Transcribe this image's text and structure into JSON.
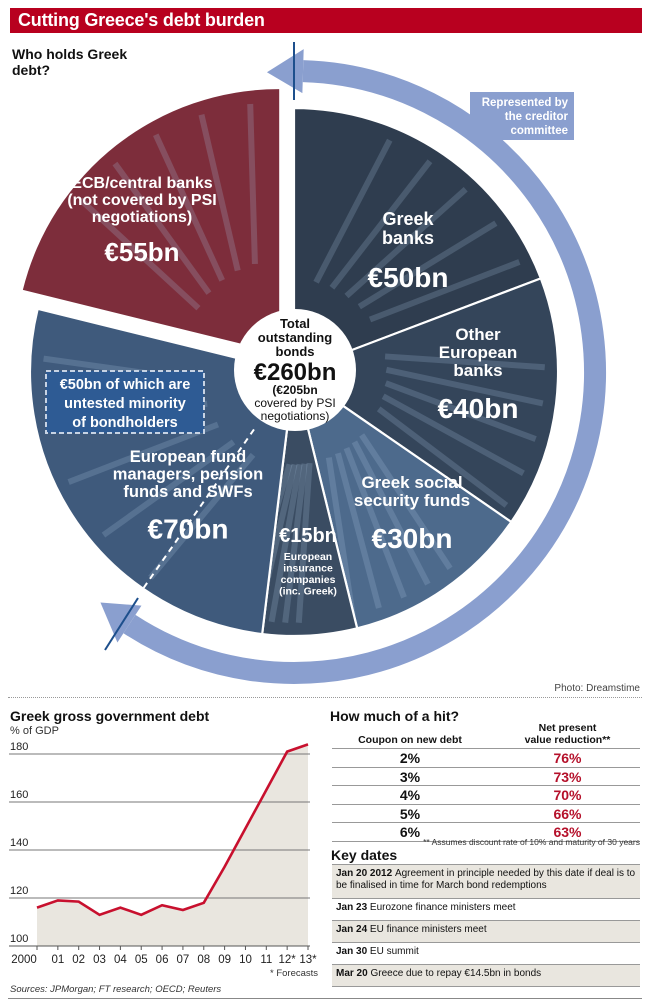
{
  "title": "Cutting Greece's debt burden",
  "pie_section": {
    "heading": "Who holds Greek debt?",
    "creditor_note": "Represented by the creditor committee",
    "center": {
      "label_line1": "Total",
      "label_line2": "outstanding",
      "label_line3": "bonds",
      "total": "€260bn",
      "covered_line1": "(€205bn",
      "covered_line2": "covered by PSI",
      "covered_line3": "negotiations)"
    },
    "minority_note": {
      "line1": "€50bn of which are",
      "line2": "untested minority",
      "line3": "of bondholders"
    },
    "photo_credit": "Photo: Dreamstime"
  },
  "chart_data": [
    {
      "type": "pie",
      "title": "Who holds Greek debt?",
      "total_label": "€260bn",
      "unit": "€bn",
      "slices": [
        {
          "name": "Greek banks",
          "label_lines": [
            "Greek",
            "banks"
          ],
          "value": 50,
          "value_label": "€50bn",
          "color": "#2f3d4f",
          "exploded": false
        },
        {
          "name": "Other European banks",
          "label_lines": [
            "Other",
            "European",
            "banks"
          ],
          "value": 40,
          "value_label": "€40bn",
          "color": "#34455a",
          "exploded": false
        },
        {
          "name": "Greek social security funds",
          "label_lines": [
            "Greek social",
            "security funds"
          ],
          "value": 30,
          "value_label": "€30bn",
          "color": "#4d6a8c",
          "exploded": false
        },
        {
          "name": "European insurance companies (inc. Greek)",
          "label_lines": [
            "European",
            "insurance",
            "companies",
            "(inc. Greek)"
          ],
          "value": 15,
          "value_label": "€15bn",
          "color": "#3a4c62",
          "exploded": false
        },
        {
          "name": "European fund managers, pension funds and SWFs",
          "label_lines": [
            "European fund",
            "managers, pension",
            "funds and SWFs"
          ],
          "value": 70,
          "value_label": "€70bn",
          "color": "#3f5a7c",
          "exploded": false
        },
        {
          "name": "ECB/central banks (not covered by PSI negotiations)",
          "label_lines": [
            "ECB/central banks",
            "(not covered by PSI",
            "negotiations)"
          ],
          "value": 55,
          "value_label": "€55bn",
          "color": "#7d2d3b",
          "exploded": true
        }
      ]
    },
    {
      "type": "area",
      "title": "Greek gross government debt",
      "ylabel": "% of GDP",
      "xlabel": "",
      "x": [
        "2000",
        "01",
        "02",
        "03",
        "04",
        "05",
        "06",
        "07",
        "08",
        "09",
        "10",
        "11",
        "12*",
        "13*"
      ],
      "values": [
        116,
        119,
        118.5,
        113,
        116,
        113,
        117,
        115,
        118,
        133,
        149,
        165,
        181,
        184
      ],
      "ylim": [
        100,
        185
      ],
      "yticks": [
        100,
        120,
        140,
        160,
        180
      ],
      "grid": true,
      "line_color": "#c8102e",
      "fill_color": "#e9e6df",
      "note": "* Forecasts",
      "sources": "Sources: JPMorgan;  FT research; OECD; Reuters"
    },
    {
      "type": "table",
      "title": "How much of a hit?",
      "columns": [
        "Coupon on new debt",
        "Net present value reduction**"
      ],
      "rows": [
        {
          "coupon": "2%",
          "npv": "76%"
        },
        {
          "coupon": "3%",
          "npv": "73%"
        },
        {
          "coupon": "4%",
          "npv": "70%"
        },
        {
          "coupon": "5%",
          "npv": "66%"
        },
        {
          "coupon": "6%",
          "npv": "63%"
        }
      ],
      "footnote": "** Assumes discount rate of 10% and maturity of 30 years"
    }
  ],
  "hit": {
    "title": "How much of a hit?",
    "col1": "Coupon on new debt",
    "col2_line1": "Net present",
    "col2_line2": "value reduction**",
    "footnote": "** Assumes discount rate of 10% and maturity of 30 years"
  },
  "key_dates": {
    "title": "Key dates",
    "items": [
      {
        "date": "Jan 20 2012",
        "text": "Agreement in principle needed by this date if deal is to be finalised in time for March bond redemptions"
      },
      {
        "date": "Jan 23",
        "text": "Eurozone finance ministers meet"
      },
      {
        "date": "Jan 24",
        "text": "EU finance ministers meet"
      },
      {
        "date": "Jan 30",
        "text": "EU summit"
      },
      {
        "date": "Mar 20",
        "text": "Greece due to repay €14.5bn in bonds"
      }
    ]
  },
  "debt_chart": {
    "title": "Greek gross government debt",
    "subtitle": "% of GDP",
    "forecasts_note": "* Forecasts",
    "sources": "Sources: JPMorgan;  FT research; OECD; Reuters"
  },
  "colors": {
    "title_bar": "#b8001f",
    "arrow": "#8a9fcf",
    "accent_red": "#b5102a"
  }
}
